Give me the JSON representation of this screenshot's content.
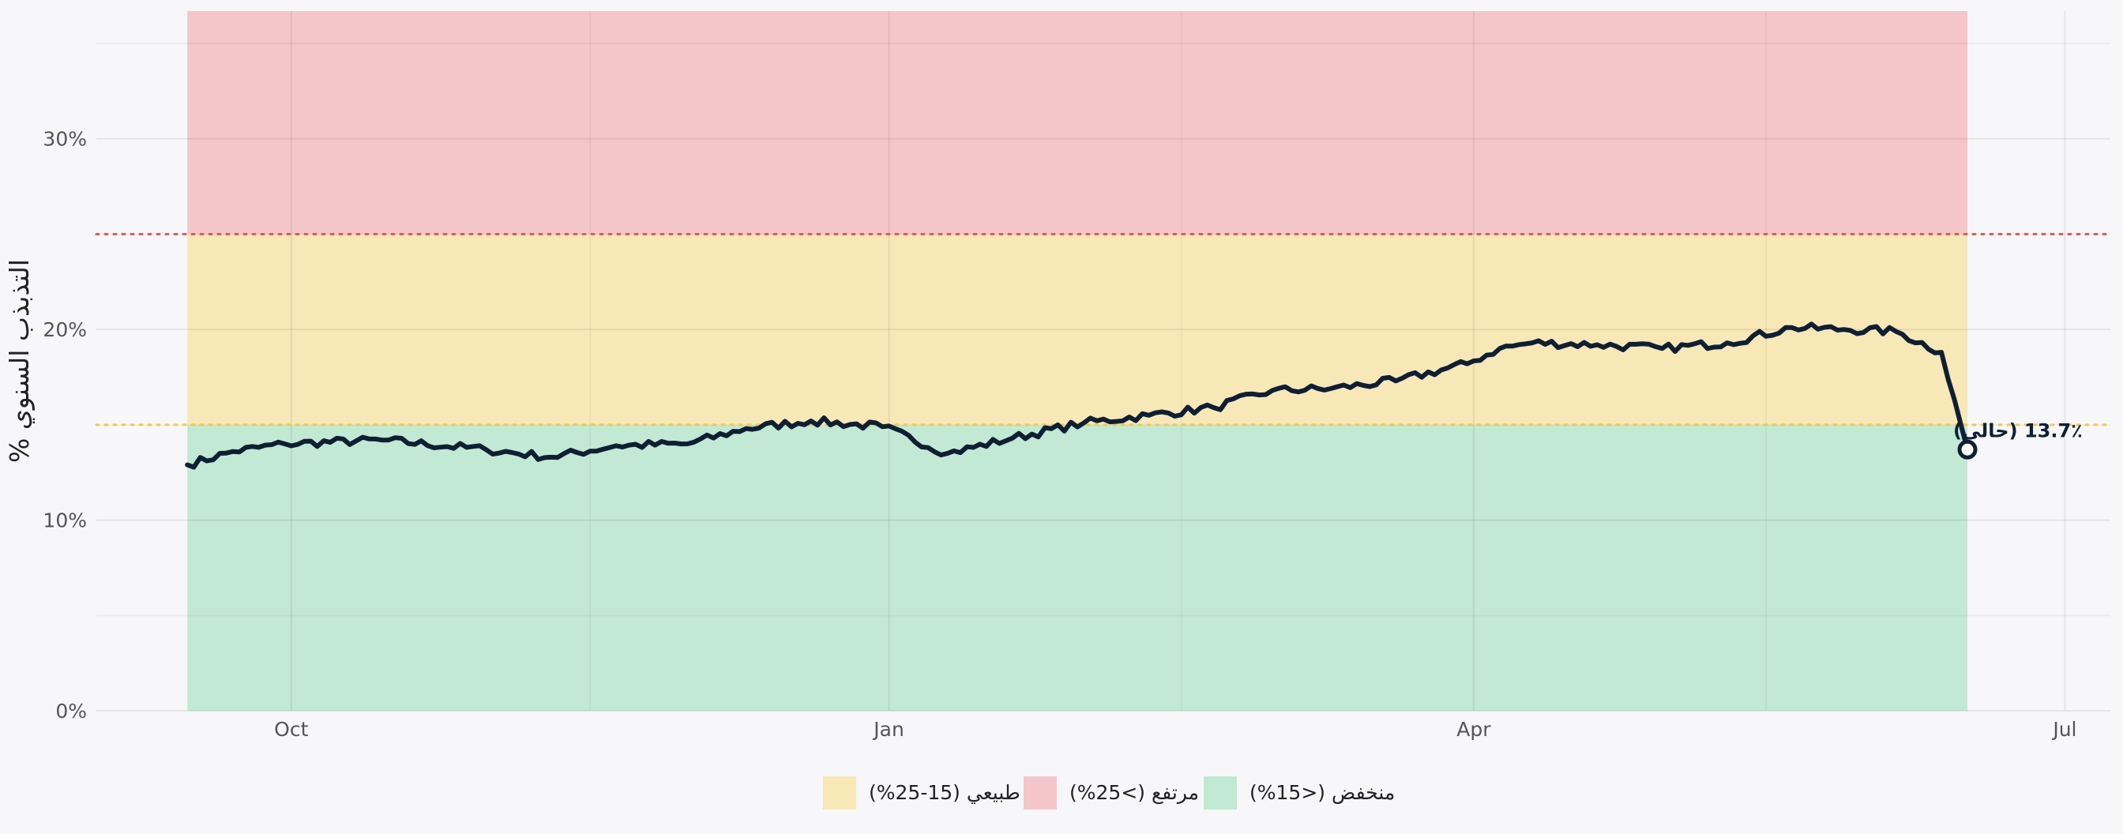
{
  "chart_data": {
    "type": "line",
    "title": "",
    "xlabel": "",
    "ylabel": "التذبذب السنوي %",
    "x_ticks": [
      "Oct",
      "Jan",
      "Apr",
      "Jul"
    ],
    "y_ticks": [
      "0%",
      "10%",
      "20%",
      "30%"
    ],
    "ylim": [
      0,
      36.7
    ],
    "xlim": [
      "2024-09-01",
      "2025-07-08"
    ],
    "grid": true,
    "legend_position": "bottom-center",
    "bands": [
      {
        "name": "منخفض (<15%)",
        "from": 0,
        "to": 15,
        "color": "#c2e9d3"
      },
      {
        "name": "طبيعي (15-25%)",
        "from": 15,
        "to": 25,
        "color": "#f8e8b8"
      },
      {
        "name": "مرتفع (>25%)",
        "from": 25,
        "to": 36.7,
        "color": "#f4c6c9"
      }
    ],
    "threshold_lines": [
      {
        "value": 15,
        "color": "#f2c94c"
      },
      {
        "value": 25,
        "color": "#e05a5a"
      }
    ],
    "line_color": "#0f1f33",
    "series": [
      {
        "x": [
          "2024-09-15",
          "2024-09-22",
          "2024-09-30",
          "2024-10-15",
          "2024-10-31",
          "2024-11-10",
          "2024-11-20",
          "2024-12-01",
          "2024-12-10",
          "2024-12-20",
          "2024-12-31",
          "2025-01-10",
          "2025-01-20",
          "2025-01-31",
          "2025-02-10",
          "2025-02-20",
          "2025-03-01",
          "2025-03-10",
          "2025-03-20",
          "2025-03-31",
          "2025-04-05",
          "2025-04-10",
          "2025-04-20",
          "2025-04-30",
          "2025-05-10",
          "2025-05-20",
          "2025-05-28",
          "2025-06-05",
          "2025-06-12",
          "2025-06-16"
        ],
        "y": [
          12.9,
          13.6,
          14.0,
          14.2,
          13.7,
          13.3,
          13.9,
          14.0,
          14.8,
          15.2,
          14.9,
          13.5,
          14.3,
          15.1,
          15.5,
          15.9,
          16.8,
          16.9,
          17.3,
          18.2,
          19.0,
          19.3,
          19.2,
          19.0,
          19.3,
          20.1,
          20.0,
          19.9,
          18.8,
          13.7
        ]
      }
    ],
    "annotation": {
      "label": "13.7٪ (حالي)",
      "x": "2025-06-16",
      "y": 13.7
    }
  }
}
